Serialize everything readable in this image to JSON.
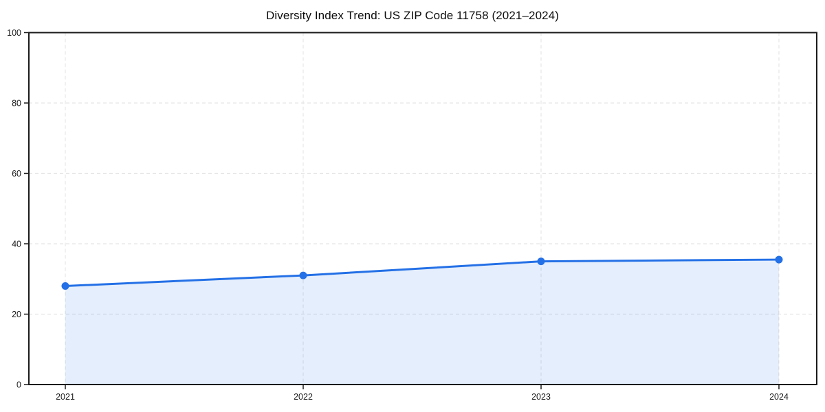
{
  "chart_data": {
    "type": "area",
    "title": "Diversity Index Trend: US ZIP Code 11758 (2021–2024)",
    "x": [
      "2021",
      "2022",
      "2023",
      "2024"
    ],
    "values": [
      28,
      31,
      35,
      35.5
    ],
    "xlabel": "",
    "ylabel": "",
    "ylim": [
      0,
      100
    ],
    "yticks": [
      0,
      20,
      40,
      60,
      80,
      100
    ],
    "grid": true,
    "grid_style": "dashed",
    "legend": "none",
    "line_color": "#2470e6",
    "fill_opacity": 0.12,
    "gridline_color": "#e5e5e5",
    "axis_color": "#1a1a1a",
    "marker": "circle"
  }
}
